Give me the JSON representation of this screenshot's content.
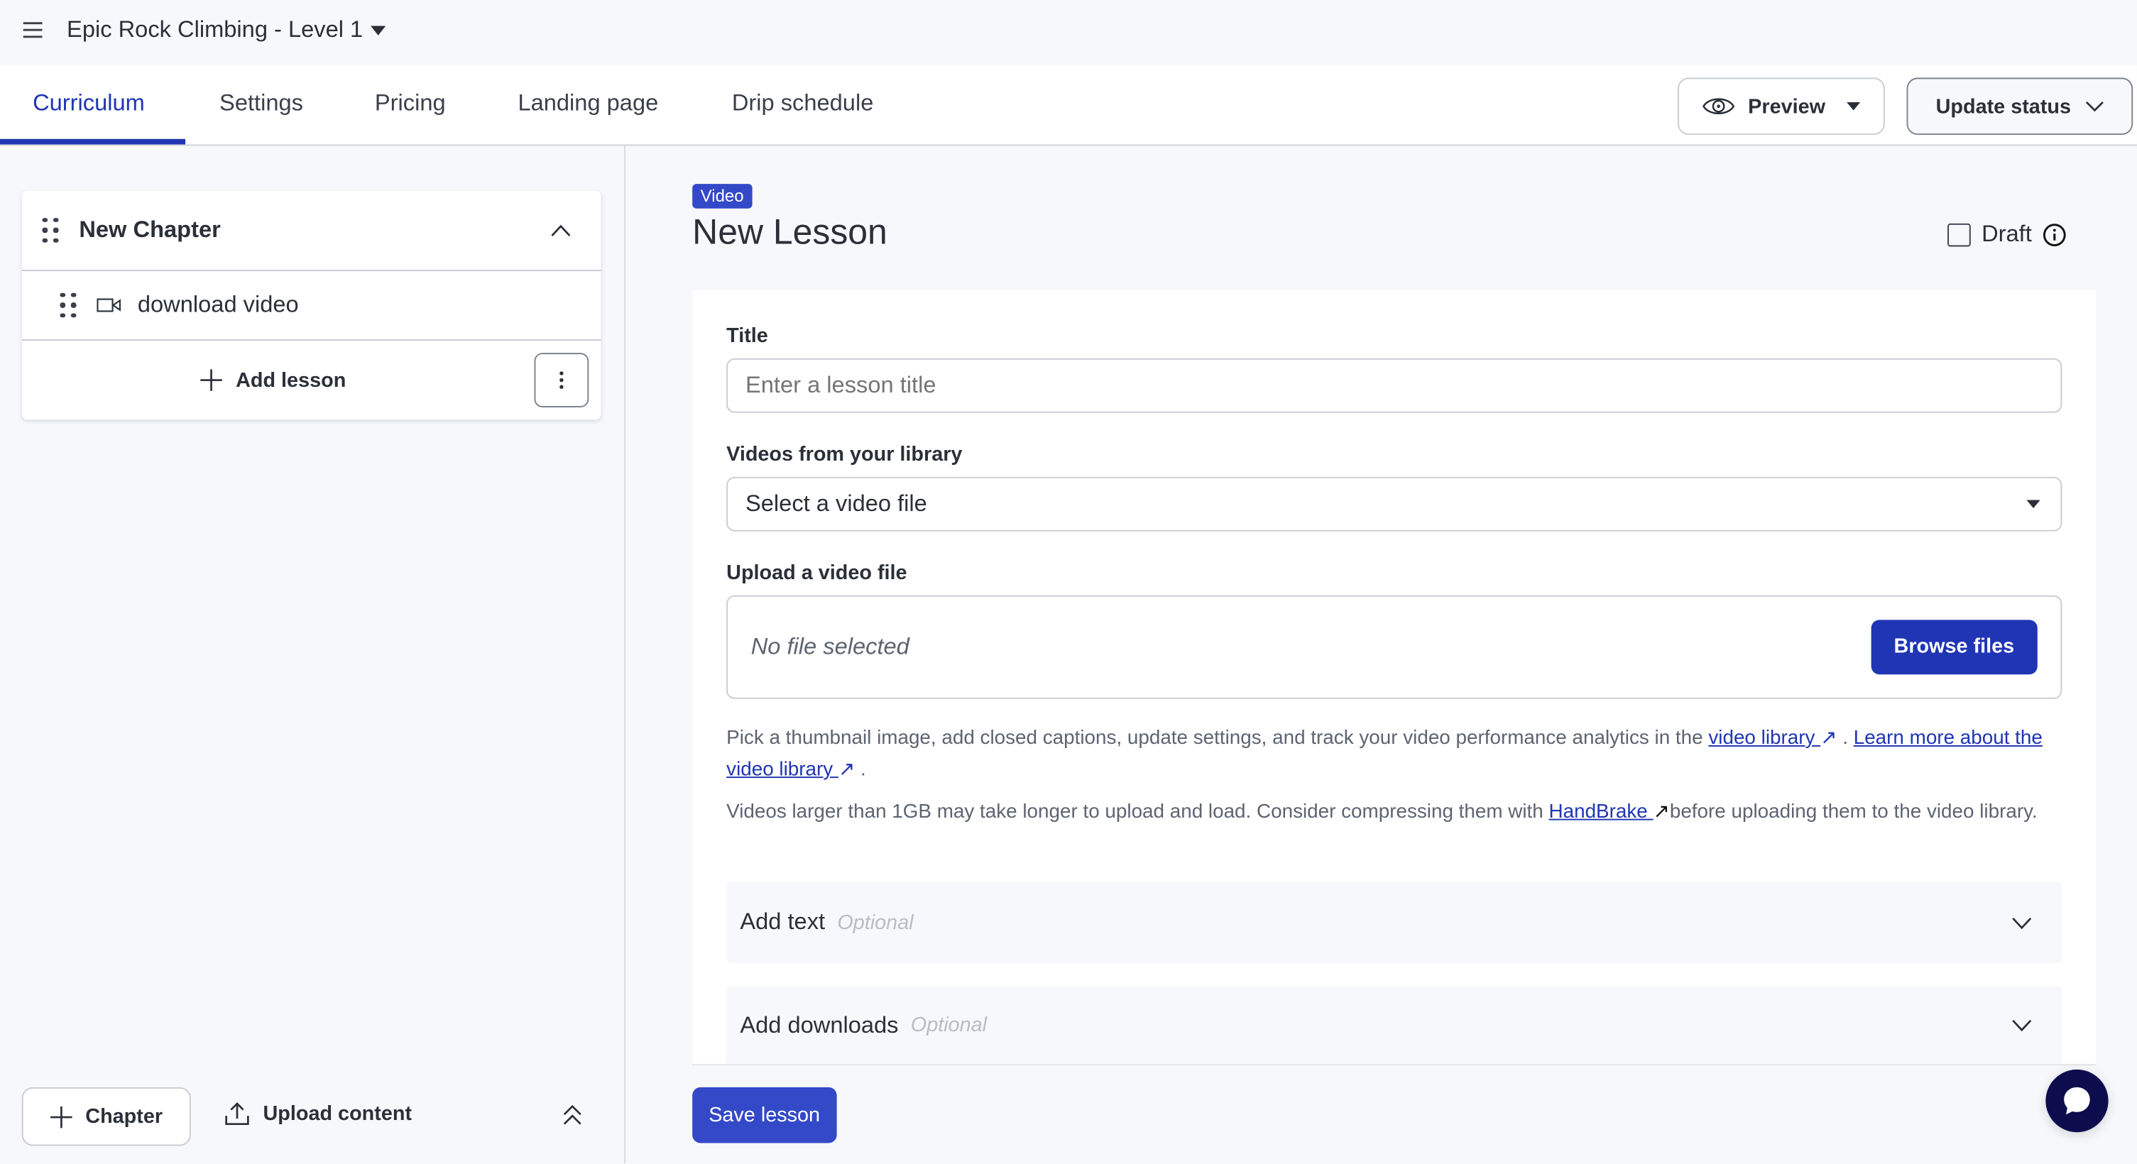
{
  "header": {
    "course_title": "Epic Rock Climbing - Level 1"
  },
  "tabs": [
    {
      "label": "Curriculum",
      "active": true
    },
    {
      "label": "Settings"
    },
    {
      "label": "Pricing"
    },
    {
      "label": "Landing page"
    },
    {
      "label": "Drip schedule"
    }
  ],
  "actions": {
    "preview": "Preview",
    "update_status": "Update status"
  },
  "sidebar": {
    "chapter": {
      "title": "New Chapter",
      "lessons": [
        {
          "title": "download video",
          "icon": "video-icon"
        }
      ],
      "add_lesson": "Add lesson"
    },
    "footer": {
      "add_chapter": "Chapter",
      "upload_content": "Upload content"
    }
  },
  "lesson": {
    "type_badge": "Video",
    "title": "New Lesson",
    "draft_label": "Draft",
    "draft_checked": false,
    "form": {
      "title_label": "Title",
      "title_placeholder": "Enter a lesson title",
      "title_value": "",
      "library_label": "Videos from your library",
      "library_selected": "Select a video file",
      "upload_label": "Upload a video file",
      "no_file": "No file selected",
      "browse": "Browse files",
      "help1_pre": "Pick a thumbnail image, add closed captions, update settings, and track your video performance analytics in the ",
      "help1_link1": "video library ",
      "help1_mid": " . ",
      "help1_link2": "Learn more about the video library ",
      "help1_end": " .",
      "help2_pre": "Videos larger than 1GB may take longer to upload and load. Consider compressing them with ",
      "help2_link": "HandBrake ",
      "help2_post": "before uploading them to the video library.",
      "add_text": "Add text",
      "add_downloads": "Add downloads",
      "optional": "Optional"
    },
    "save": "Save lesson"
  },
  "colors": {
    "accent": "#1f35b4",
    "badge": "#3349c8",
    "chat": "#0d0d4d",
    "background": "#f7f8fb"
  }
}
